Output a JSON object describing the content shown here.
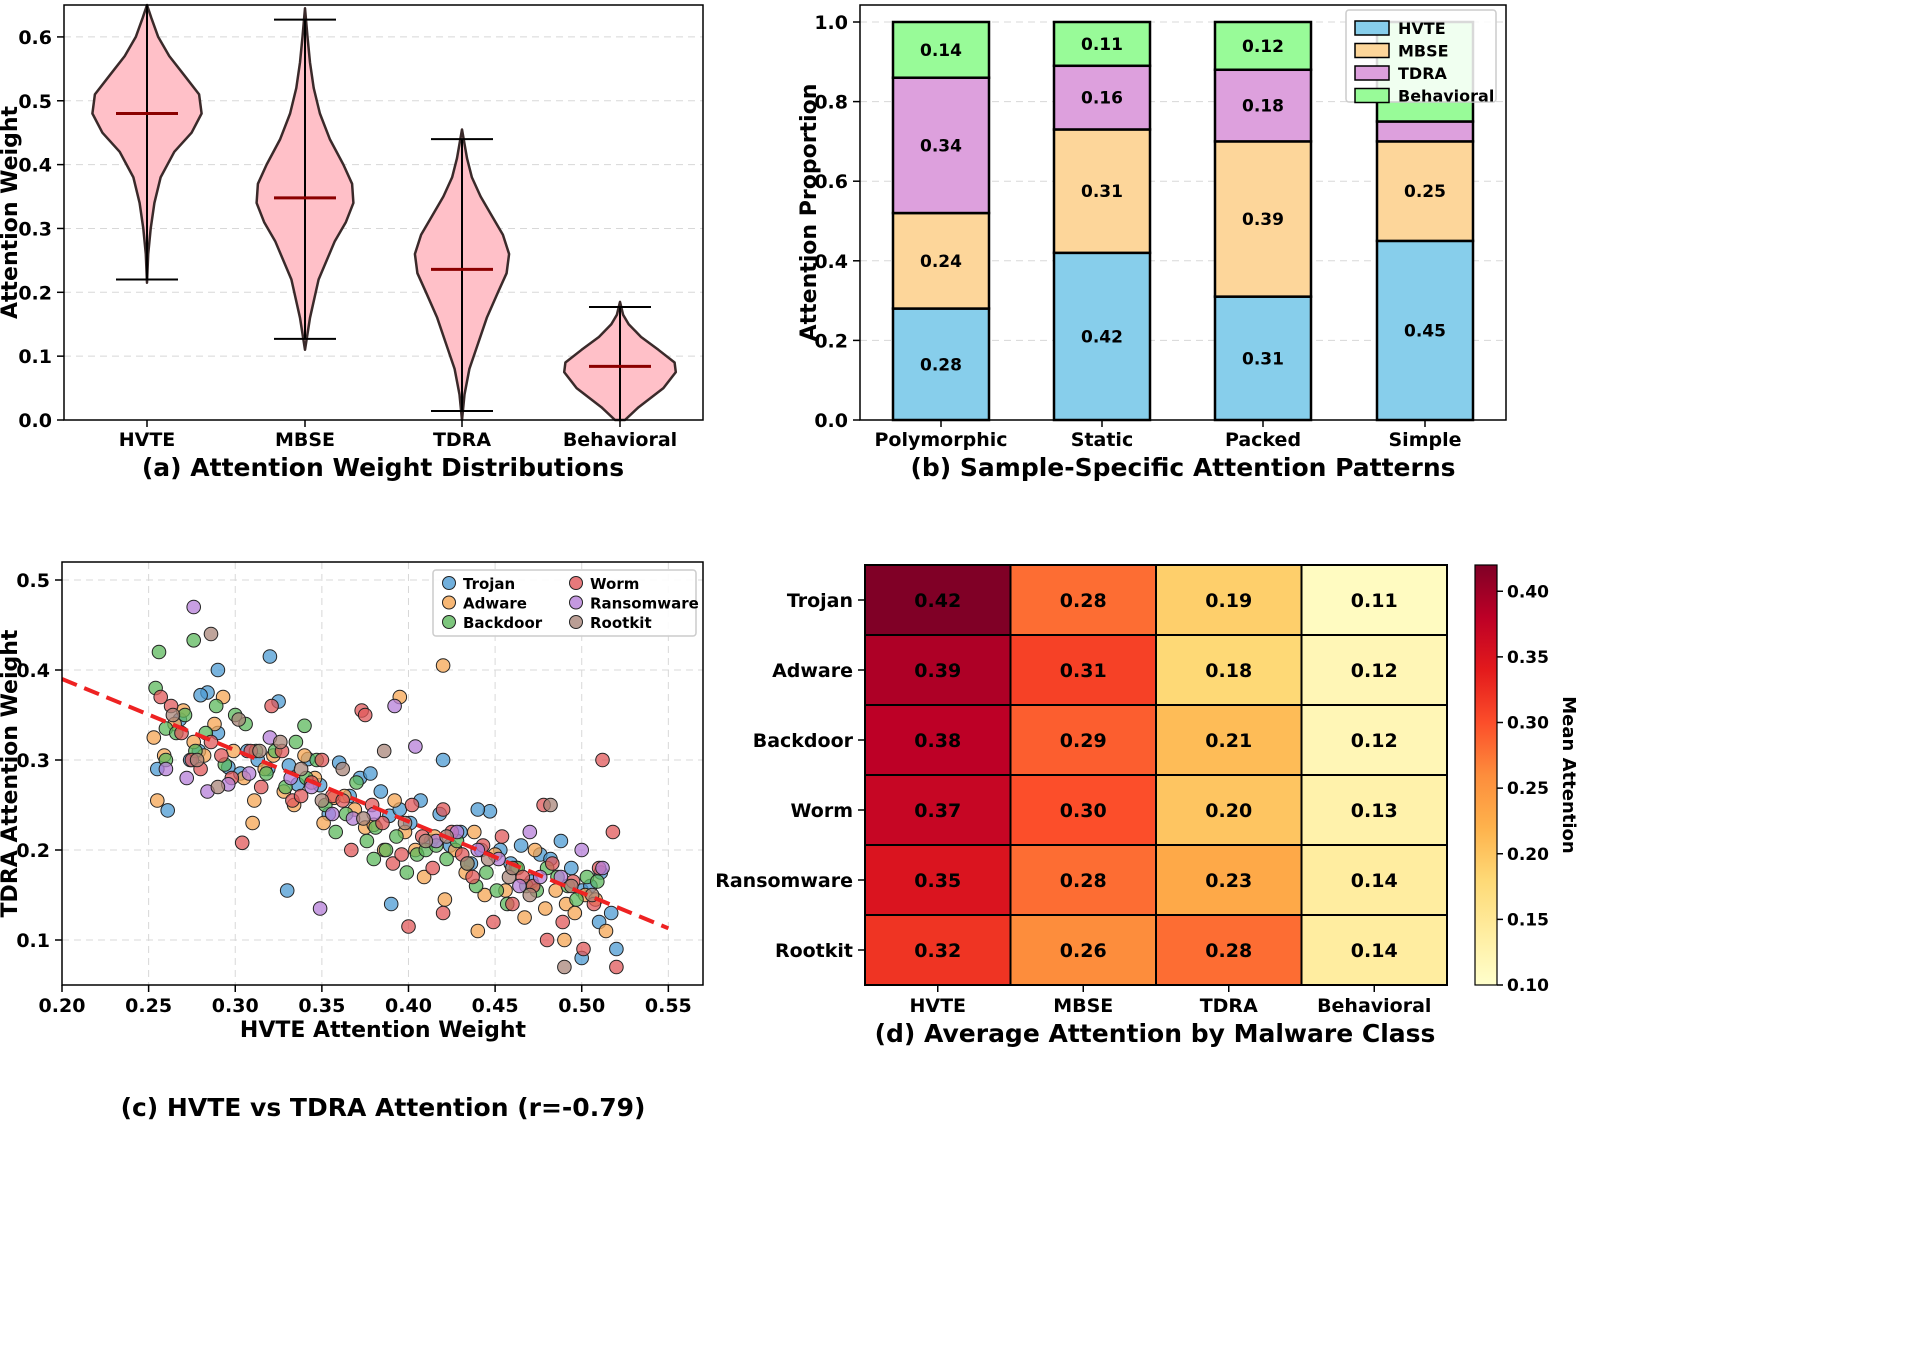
{
  "chart_data": [
    {
      "id": "a",
      "type": "violin",
      "title": "(a) Attention Weight Distributions",
      "xlabel": "",
      "ylabel": "Attention Weight",
      "ylim": [
        0.0,
        0.65
      ],
      "yticks": [
        0.0,
        0.1,
        0.2,
        0.3,
        0.4,
        0.5,
        0.6
      ],
      "ytick_labels": [
        "0.0",
        "0.1",
        "0.2",
        "0.3",
        "0.4",
        "0.5",
        "0.6"
      ],
      "grid": true,
      "fill_color": "#ffc0c8",
      "edge_color": "#3a2a2a",
      "mean_color": "#8b0000",
      "categories": [
        "HVTE",
        "MBSE",
        "TDRA",
        "Behavioral"
      ],
      "stats": [
        {
          "min": 0.22,
          "max": 0.65,
          "mean": 0.48
        },
        {
          "min": 0.127,
          "max": 0.627,
          "mean": 0.348
        },
        {
          "min": 0.014,
          "max": 0.44,
          "mean": 0.236
        },
        {
          "min": 0.0,
          "max": 0.177,
          "mean": 0.084
        }
      ],
      "density_profiles": [
        [
          [
            0.215,
            0.0
          ],
          [
            0.26,
            0.02
          ],
          [
            0.3,
            0.06
          ],
          [
            0.34,
            0.12
          ],
          [
            0.38,
            0.22
          ],
          [
            0.42,
            0.44
          ],
          [
            0.45,
            0.72
          ],
          [
            0.48,
            0.88
          ],
          [
            0.51,
            0.84
          ],
          [
            0.54,
            0.6
          ],
          [
            0.57,
            0.36
          ],
          [
            0.6,
            0.18
          ],
          [
            0.63,
            0.07
          ],
          [
            0.66,
            0.0
          ]
        ],
        [
          [
            0.11,
            0.0
          ],
          [
            0.16,
            0.08
          ],
          [
            0.22,
            0.22
          ],
          [
            0.28,
            0.48
          ],
          [
            0.31,
            0.66
          ],
          [
            0.34,
            0.78
          ],
          [
            0.37,
            0.76
          ],
          [
            0.4,
            0.62
          ],
          [
            0.44,
            0.4
          ],
          [
            0.48,
            0.24
          ],
          [
            0.52,
            0.14
          ],
          [
            0.56,
            0.08
          ],
          [
            0.6,
            0.04
          ],
          [
            0.645,
            0.0
          ]
        ],
        [
          [
            -0.005,
            0.0
          ],
          [
            0.04,
            0.04
          ],
          [
            0.08,
            0.12
          ],
          [
            0.12,
            0.26
          ],
          [
            0.16,
            0.4
          ],
          [
            0.2,
            0.58
          ],
          [
            0.23,
            0.72
          ],
          [
            0.26,
            0.76
          ],
          [
            0.29,
            0.66
          ],
          [
            0.32,
            0.48
          ],
          [
            0.35,
            0.3
          ],
          [
            0.38,
            0.16
          ],
          [
            0.41,
            0.08
          ],
          [
            0.455,
            0.0
          ]
        ],
        [
          [
            0.0,
            0.08
          ],
          [
            0.02,
            0.3
          ],
          [
            0.05,
            0.7
          ],
          [
            0.075,
            0.9
          ],
          [
            0.09,
            0.88
          ],
          [
            0.11,
            0.62
          ],
          [
            0.13,
            0.34
          ],
          [
            0.15,
            0.14
          ],
          [
            0.165,
            0.05
          ],
          [
            0.185,
            0.0
          ]
        ]
      ]
    },
    {
      "id": "b",
      "type": "stacked_bar",
      "title": "(b) Sample-Specific Attention Patterns",
      "xlabel": "",
      "ylabel": "Attention Proportion",
      "ylim": [
        0.0,
        1.0
      ],
      "yticks": [
        0.0,
        0.2,
        0.4,
        0.6,
        0.8,
        1.0
      ],
      "ytick_labels": [
        "0.0",
        "0.2",
        "0.4",
        "0.6",
        "0.8",
        "1.0"
      ],
      "grid": true,
      "legend_position": "top-right",
      "categories": [
        "Polymorphic",
        "Static",
        "Packed",
        "Simple"
      ],
      "series": [
        {
          "name": "HVTE",
          "color": "#87ceeb",
          "values": [
            0.28,
            0.42,
            0.31,
            0.45
          ],
          "labels": [
            "0.28",
            "0.42",
            "0.31",
            "0.45"
          ]
        },
        {
          "name": "MBSE",
          "color": "#fdd69a",
          "values": [
            0.24,
            0.31,
            0.39,
            0.25
          ],
          "labels": [
            "0.24",
            "0.31",
            "0.39",
            "0.25"
          ]
        },
        {
          "name": "TDRA",
          "color": "#dda0dd",
          "values": [
            0.34,
            0.16,
            0.18,
            0.05
          ],
          "labels": [
            "0.34",
            "0.16",
            "0.18",
            ""
          ]
        },
        {
          "name": "Behavioral",
          "color": "#98fb98",
          "values": [
            0.14,
            0.11,
            0.12,
            0.25
          ],
          "labels": [
            "0.14",
            "0.11",
            "0.12",
            ""
          ]
        }
      ]
    },
    {
      "id": "c",
      "type": "scatter",
      "title": "(c) HVTE vs TDRA Attention (r=-0.79)",
      "xlabel": "HVTE Attention Weight",
      "ylabel": "TDRA Attention Weight",
      "xlim": [
        0.2,
        0.57
      ],
      "ylim": [
        0.05,
        0.52
      ],
      "xticks": [
        0.2,
        0.25,
        0.3,
        0.35,
        0.4,
        0.45,
        0.5,
        0.55
      ],
      "xtick_labels": [
        "0.20",
        "0.25",
        "0.30",
        "0.35",
        "0.40",
        "0.45",
        "0.50",
        "0.55"
      ],
      "yticks": [
        0.1,
        0.2,
        0.3,
        0.4,
        0.5
      ],
      "ytick_labels": [
        "0.1",
        "0.2",
        "0.3",
        "0.4",
        "0.5"
      ],
      "grid": true,
      "legend_position": "top-right",
      "trend_line": {
        "x": [
          0.2,
          0.55
        ],
        "y": [
          0.39,
          0.113
        ],
        "color": "#ee2222"
      },
      "groups": [
        {
          "name": "Trojan",
          "color": "#4c9bd3",
          "x": [
            0.255,
            0.261,
            0.268,
            0.274,
            0.279,
            0.284,
            0.29,
            0.296,
            0.303,
            0.307,
            0.313,
            0.319,
            0.325,
            0.331,
            0.336,
            0.342,
            0.349,
            0.354,
            0.36,
            0.366,
            0.372,
            0.378,
            0.384,
            0.389,
            0.395,
            0.401,
            0.407,
            0.413,
            0.418,
            0.424,
            0.43,
            0.436,
            0.442,
            0.447,
            0.453,
            0.459,
            0.465,
            0.471,
            0.476,
            0.482,
            0.488,
            0.494,
            0.5,
            0.505,
            0.511,
            0.517,
            0.28,
            0.29,
            0.32,
            0.33,
            0.39,
            0.42,
            0.44,
            0.5,
            0.51,
            0.52
          ],
          "y": [
            0.29,
            0.244,
            0.345,
            0.3,
            0.31,
            0.375,
            0.33,
            0.292,
            0.285,
            0.31,
            0.3,
            0.29,
            0.365,
            0.294,
            0.273,
            0.301,
            0.272,
            0.24,
            0.297,
            0.26,
            0.28,
            0.285,
            0.265,
            0.238,
            0.245,
            0.23,
            0.255,
            0.21,
            0.24,
            0.205,
            0.22,
            0.185,
            0.2,
            0.243,
            0.2,
            0.185,
            0.205,
            0.165,
            0.195,
            0.19,
            0.21,
            0.18,
            0.155,
            0.16,
            0.175,
            0.13,
            0.372,
            0.4,
            0.415,
            0.155,
            0.14,
            0.3,
            0.245,
            0.08,
            0.12,
            0.09
          ]
        },
        {
          "name": "Adware",
          "color": "#f5a553",
          "x": [
            0.253,
            0.259,
            0.265,
            0.27,
            0.276,
            0.282,
            0.288,
            0.293,
            0.299,
            0.305,
            0.311,
            0.317,
            0.322,
            0.328,
            0.334,
            0.34,
            0.346,
            0.351,
            0.357,
            0.363,
            0.369,
            0.375,
            0.38,
            0.386,
            0.392,
            0.398,
            0.404,
            0.409,
            0.415,
            0.421,
            0.427,
            0.433,
            0.438,
            0.444,
            0.45,
            0.456,
            0.462,
            0.467,
            0.473,
            0.479,
            0.485,
            0.491,
            0.496,
            0.502,
            0.508,
            0.514,
            0.395,
            0.42,
            0.255,
            0.31,
            0.44,
            0.49
          ],
          "y": [
            0.325,
            0.305,
            0.34,
            0.355,
            0.32,
            0.305,
            0.34,
            0.37,
            0.31,
            0.28,
            0.255,
            0.29,
            0.305,
            0.265,
            0.25,
            0.305,
            0.28,
            0.23,
            0.258,
            0.26,
            0.245,
            0.225,
            0.228,
            0.2,
            0.255,
            0.22,
            0.2,
            0.17,
            0.215,
            0.145,
            0.2,
            0.175,
            0.22,
            0.15,
            0.195,
            0.155,
            0.18,
            0.125,
            0.2,
            0.135,
            0.155,
            0.14,
            0.13,
            0.15,
            0.145,
            0.11,
            0.37,
            0.405,
            0.255,
            0.23,
            0.11,
            0.1
          ]
        },
        {
          "name": "Backdoor",
          "color": "#5cb85c",
          "x": [
            0.254,
            0.26,
            0.266,
            0.271,
            0.277,
            0.283,
            0.289,
            0.294,
            0.3,
            0.306,
            0.312,
            0.318,
            0.323,
            0.329,
            0.335,
            0.341,
            0.347,
            0.352,
            0.358,
            0.364,
            0.37,
            0.376,
            0.381,
            0.387,
            0.393,
            0.399,
            0.405,
            0.41,
            0.416,
            0.422,
            0.428,
            0.434,
            0.439,
            0.445,
            0.451,
            0.457,
            0.463,
            0.468,
            0.474,
            0.48,
            0.486,
            0.492,
            0.497,
            0.503,
            0.509,
            0.256,
            0.26,
            0.276,
            0.34,
            0.38
          ],
          "y": [
            0.38,
            0.335,
            0.33,
            0.35,
            0.31,
            0.33,
            0.36,
            0.295,
            0.35,
            0.34,
            0.31,
            0.285,
            0.31,
            0.27,
            0.32,
            0.28,
            0.3,
            0.25,
            0.22,
            0.24,
            0.275,
            0.21,
            0.225,
            0.2,
            0.215,
            0.175,
            0.195,
            0.2,
            0.205,
            0.19,
            0.21,
            0.185,
            0.16,
            0.175,
            0.155,
            0.14,
            0.18,
            0.16,
            0.155,
            0.18,
            0.17,
            0.16,
            0.145,
            0.17,
            0.165,
            0.42,
            0.3,
            0.433,
            0.338,
            0.19
          ]
        },
        {
          "name": "Worm",
          "color": "#e0585a",
          "x": [
            0.257,
            0.263,
            0.269,
            0.275,
            0.28,
            0.286,
            0.292,
            0.298,
            0.304,
            0.309,
            0.315,
            0.321,
            0.327,
            0.333,
            0.338,
            0.344,
            0.35,
            0.356,
            0.362,
            0.367,
            0.373,
            0.379,
            0.385,
            0.391,
            0.396,
            0.402,
            0.408,
            0.414,
            0.42,
            0.425,
            0.431,
            0.437,
            0.443,
            0.449,
            0.454,
            0.46,
            0.466,
            0.472,
            0.478,
            0.483,
            0.489,
            0.495,
            0.501,
            0.507,
            0.512,
            0.518,
            0.375,
            0.4,
            0.42,
            0.48,
            0.51,
            0.52
          ],
          "y": [
            0.37,
            0.36,
            0.33,
            0.3,
            0.29,
            0.32,
            0.305,
            0.28,
            0.208,
            0.31,
            0.27,
            0.36,
            0.31,
            0.255,
            0.26,
            0.275,
            0.3,
            0.26,
            0.255,
            0.2,
            0.355,
            0.25,
            0.23,
            0.185,
            0.195,
            0.25,
            0.215,
            0.18,
            0.245,
            0.22,
            0.195,
            0.17,
            0.205,
            0.12,
            0.215,
            0.14,
            0.17,
            0.16,
            0.25,
            0.185,
            0.12,
            0.165,
            0.09,
            0.14,
            0.3,
            0.22,
            0.35,
            0.115,
            0.13,
            0.1,
            0.18,
            0.07
          ]
        },
        {
          "name": "Ransomware",
          "color": "#b57fd8",
          "x": [
            0.26,
            0.272,
            0.284,
            0.296,
            0.308,
            0.32,
            0.332,
            0.344,
            0.356,
            0.368,
            0.38,
            0.392,
            0.404,
            0.416,
            0.428,
            0.44,
            0.452,
            0.464,
            0.476,
            0.488,
            0.5,
            0.512,
            0.276,
            0.349,
            0.47
          ],
          "y": [
            0.29,
            0.28,
            0.265,
            0.273,
            0.285,
            0.325,
            0.28,
            0.27,
            0.24,
            0.235,
            0.24,
            0.36,
            0.315,
            0.21,
            0.22,
            0.2,
            0.19,
            0.16,
            0.17,
            0.17,
            0.2,
            0.18,
            0.47,
            0.135,
            0.22
          ]
        },
        {
          "name": "Rootkit",
          "color": "#a9867a",
          "x": [
            0.264,
            0.278,
            0.29,
            0.302,
            0.314,
            0.326,
            0.338,
            0.35,
            0.362,
            0.374,
            0.386,
            0.398,
            0.41,
            0.422,
            0.434,
            0.446,
            0.458,
            0.47,
            0.482,
            0.494,
            0.506,
            0.286,
            0.46,
            0.49
          ],
          "y": [
            0.35,
            0.3,
            0.27,
            0.345,
            0.31,
            0.32,
            0.29,
            0.255,
            0.29,
            0.235,
            0.31,
            0.23,
            0.21,
            0.215,
            0.185,
            0.19,
            0.17,
            0.15,
            0.25,
            0.16,
            0.15,
            0.44,
            0.18,
            0.07
          ]
        }
      ]
    },
    {
      "id": "d",
      "type": "heatmap",
      "title": "(d) Average Attention by Malware Class",
      "colorbar_label": "Mean Attention",
      "colorbar_range": [
        0.1,
        0.42
      ],
      "colorbar_ticks": [
        0.1,
        0.15,
        0.2,
        0.25,
        0.3,
        0.35,
        0.4
      ],
      "colorbar_tick_labels": [
        "0.10",
        "0.15",
        "0.20",
        "0.25",
        "0.30",
        "0.35",
        "0.40"
      ],
      "x_labels": [
        "HVTE",
        "MBSE",
        "TDRA",
        "Behavioral"
      ],
      "y_labels": [
        "Trojan",
        "Adware",
        "Backdoor",
        "Worm",
        "Ransomware",
        "Rootkit"
      ],
      "values": [
        [
          0.42,
          0.28,
          0.19,
          0.11
        ],
        [
          0.39,
          0.31,
          0.18,
          0.12
        ],
        [
          0.38,
          0.29,
          0.21,
          0.12
        ],
        [
          0.37,
          0.3,
          0.2,
          0.13
        ],
        [
          0.35,
          0.28,
          0.23,
          0.14
        ],
        [
          0.32,
          0.26,
          0.28,
          0.14
        ]
      ],
      "value_labels": [
        [
          "0.42",
          "0.28",
          "0.19",
          "0.11"
        ],
        [
          "0.39",
          "0.31",
          "0.18",
          "0.12"
        ],
        [
          "0.38",
          "0.29",
          "0.21",
          "0.12"
        ],
        [
          "0.37",
          "0.30",
          "0.20",
          "0.13"
        ],
        [
          "0.35",
          "0.28",
          "0.23",
          "0.14"
        ],
        [
          "0.32",
          "0.26",
          "0.28",
          "0.14"
        ]
      ],
      "colormap": [
        "#ffffcc",
        "#ffeda0",
        "#fed976",
        "#feb24c",
        "#fd8d3c",
        "#fc4e2a",
        "#e31a1c",
        "#bd0026",
        "#800026"
      ]
    }
  ]
}
